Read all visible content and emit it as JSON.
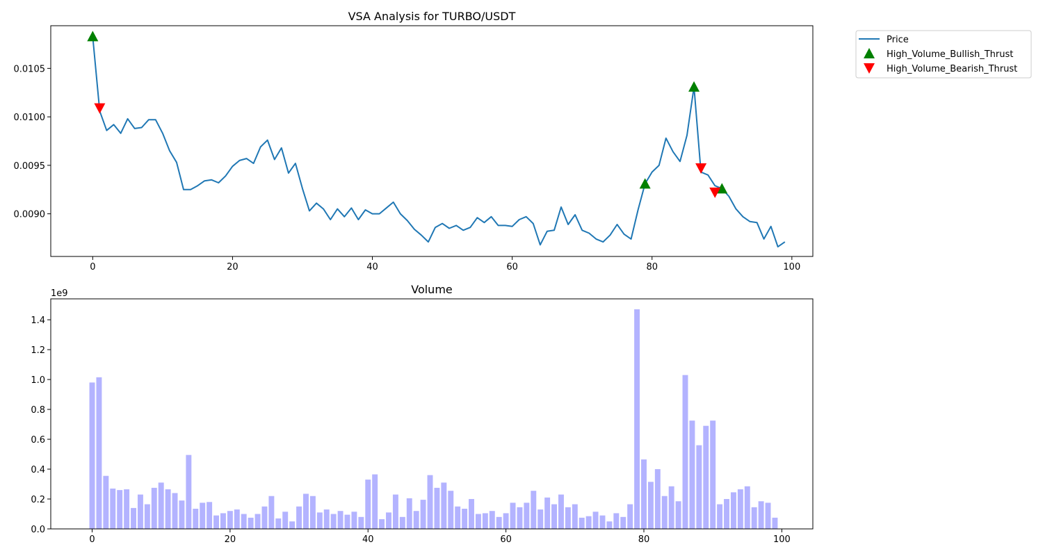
{
  "chart_data": [
    {
      "type": "line",
      "title": "VSA Analysis for TURBO/USDT",
      "xlabel": "",
      "ylabel": "",
      "xlim": [
        -6,
        103
      ],
      "ylim": [
        0.00856,
        0.01094
      ],
      "xticks": [
        0,
        20,
        40,
        60,
        80,
        100
      ],
      "xtick_labels": [
        "0",
        "20",
        "40",
        "60",
        "80",
        "100"
      ],
      "yticks": [
        0.009,
        0.0095,
        0.01,
        0.0105
      ],
      "ytick_labels": [
        "0.0090",
        "0.0095",
        "0.0100",
        "0.0105"
      ],
      "grid": false,
      "legend_position": "outside-right",
      "series": [
        {
          "name": "Price",
          "color": "#1f77b4",
          "x": [
            0,
            1,
            2,
            3,
            4,
            5,
            6,
            7,
            8,
            9,
            10,
            11,
            12,
            13,
            14,
            15,
            16,
            17,
            18,
            19,
            20,
            21,
            22,
            23,
            24,
            25,
            26,
            27,
            28,
            29,
            30,
            31,
            32,
            33,
            34,
            35,
            36,
            37,
            38,
            39,
            40,
            41,
            42,
            43,
            44,
            45,
            46,
            47,
            48,
            49,
            50,
            51,
            52,
            53,
            54,
            55,
            56,
            57,
            58,
            59,
            60,
            61,
            62,
            63,
            64,
            65,
            66,
            67,
            68,
            69,
            70,
            71,
            72,
            73,
            74,
            75,
            76,
            77,
            78,
            79,
            80,
            81,
            82,
            83,
            84,
            85,
            86,
            87,
            88,
            89,
            90,
            91,
            92,
            93,
            94,
            95,
            96,
            97,
            98,
            99
          ],
          "y": [
            0.01083,
            0.01006,
            0.00986,
            0.00992,
            0.00983,
            0.00998,
            0.00988,
            0.00989,
            0.00997,
            0.00997,
            0.00983,
            0.00965,
            0.00953,
            0.00925,
            0.00925,
            0.00929,
            0.00934,
            0.00935,
            0.00932,
            0.00939,
            0.00949,
            0.00955,
            0.00957,
            0.00952,
            0.00969,
            0.00976,
            0.00956,
            0.00968,
            0.00942,
            0.00952,
            0.00926,
            0.00903,
            0.00911,
            0.00905,
            0.00894,
            0.00905,
            0.00897,
            0.00906,
            0.00894,
            0.00904,
            0.009,
            0.009,
            0.00906,
            0.00912,
            0.009,
            0.00893,
            0.00884,
            0.00878,
            0.00871,
            0.00886,
            0.0089,
            0.00885,
            0.00888,
            0.00883,
            0.00886,
            0.00896,
            0.00891,
            0.00897,
            0.00888,
            0.00888,
            0.00887,
            0.00894,
            0.00897,
            0.0089,
            0.00868,
            0.00882,
            0.00883,
            0.00907,
            0.00889,
            0.00899,
            0.00883,
            0.0088,
            0.00874,
            0.00871,
            0.00878,
            0.00889,
            0.00879,
            0.00874,
            0.00904,
            0.00931,
            0.00943,
            0.0095,
            0.00978,
            0.00964,
            0.00954,
            0.00981,
            0.01031,
            0.00943,
            0.0094,
            0.00929,
            0.00926,
            0.00918,
            0.00905,
            0.00897,
            0.00892,
            0.00891,
            0.00874,
            0.00887,
            0.00866,
            0.00871
          ]
        },
        {
          "name": "High_Volume_Bullish_Thrust",
          "color": "#008000",
          "marker": "triangle-up",
          "x": [
            0,
            79,
            86,
            90
          ],
          "y": [
            0.01083,
            0.00931,
            0.01031,
            0.00926
          ]
        },
        {
          "name": "High_Volume_Bearish_Thrust",
          "color": "#ff0000",
          "marker": "triangle-down",
          "x": [
            1,
            87,
            89
          ],
          "y": [
            0.01009,
            0.00947,
            0.00922
          ]
        }
      ]
    },
    {
      "type": "bar",
      "title": "Volume",
      "xlabel": "",
      "ylabel": "",
      "offset_label": "1e9",
      "xlim": [
        -6,
        104.5
      ],
      "ylim": [
        0,
        1.54
      ],
      "xticks": [
        0,
        20,
        40,
        60,
        80,
        100
      ],
      "xtick_labels": [
        "0",
        "20",
        "40",
        "60",
        "80",
        "100"
      ],
      "yticks": [
        0,
        0.2,
        0.4,
        0.6,
        0.8,
        1.0,
        1.2,
        1.4
      ],
      "ytick_labels": [
        "0.0",
        "0.2",
        "0.4",
        "0.6",
        "0.8",
        "1.0",
        "1.2",
        "1.4"
      ],
      "grid": false,
      "series": [
        {
          "name": "",
          "color": "#b3b3ff",
          "x": [
            0,
            1,
            2,
            3,
            4,
            5,
            6,
            7,
            8,
            9,
            10,
            11,
            12,
            13,
            14,
            15,
            16,
            17,
            18,
            19,
            20,
            21,
            22,
            23,
            24,
            25,
            26,
            27,
            28,
            29,
            30,
            31,
            32,
            33,
            34,
            35,
            36,
            37,
            38,
            39,
            40,
            41,
            42,
            43,
            44,
            45,
            46,
            47,
            48,
            49,
            50,
            51,
            52,
            53,
            54,
            55,
            56,
            57,
            58,
            59,
            60,
            61,
            62,
            63,
            64,
            65,
            66,
            67,
            68,
            69,
            70,
            71,
            72,
            73,
            74,
            75,
            76,
            77,
            78,
            79,
            80,
            81,
            82,
            83,
            84,
            85,
            86,
            87,
            88,
            89,
            90,
            91,
            92,
            93,
            94,
            95,
            96,
            97,
            98,
            99
          ],
          "values": [
            0.98,
            1.015,
            0.355,
            0.27,
            0.26,
            0.265,
            0.14,
            0.23,
            0.165,
            0.275,
            0.31,
            0.265,
            0.24,
            0.19,
            0.495,
            0.135,
            0.175,
            0.18,
            0.09,
            0.105,
            0.12,
            0.13,
            0.1,
            0.075,
            0.1,
            0.15,
            0.22,
            0.07,
            0.115,
            0.05,
            0.15,
            0.235,
            0.22,
            0.11,
            0.13,
            0.1,
            0.12,
            0.095,
            0.115,
            0.08,
            0.33,
            0.365,
            0.065,
            0.11,
            0.23,
            0.08,
            0.205,
            0.12,
            0.195,
            0.36,
            0.275,
            0.31,
            0.255,
            0.15,
            0.135,
            0.2,
            0.1,
            0.105,
            0.12,
            0.08,
            0.105,
            0.175,
            0.145,
            0.175,
            0.255,
            0.13,
            0.21,
            0.165,
            0.23,
            0.145,
            0.165,
            0.075,
            0.085,
            0.115,
            0.09,
            0.05,
            0.105,
            0.08,
            0.165,
            1.47,
            0.465,
            0.315,
            0.4,
            0.22,
            0.285,
            0.185,
            1.03,
            0.725,
            0.56,
            0.69,
            0.725,
            0.165,
            0.2,
            0.245,
            0.265,
            0.285,
            0.145,
            0.185,
            0.175,
            0.075
          ]
        }
      ]
    }
  ]
}
